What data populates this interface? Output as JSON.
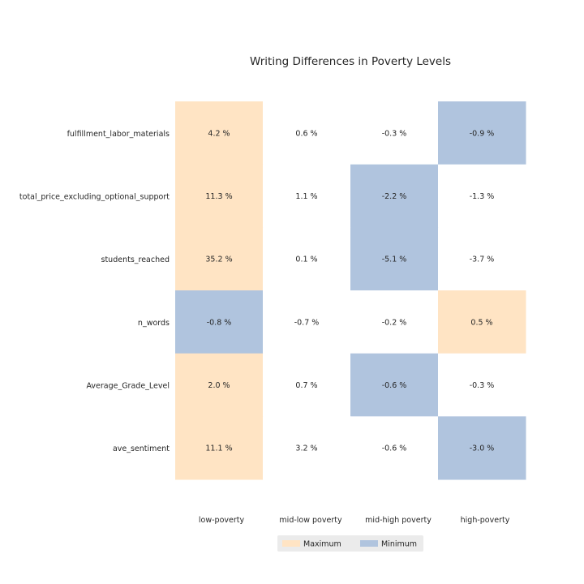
{
  "chart_data": {
    "type": "heatmap",
    "title": "Writing Differences in Poverty Levels",
    "rows": [
      "fulfillment_labor_materials",
      "total_price_excluding_optional_support",
      "students_reached",
      "n_words",
      "Average_Grade_Level",
      "ave_sentiment"
    ],
    "columns": [
      "low-poverty",
      "mid-low poverty",
      "mid-high poverty",
      "high-poverty"
    ],
    "values": [
      [
        "4.2 %",
        "0.6 %",
        "-0.3 %",
        "-0.9 %"
      ],
      [
        "11.3 %",
        "1.1 %",
        "-2.2 %",
        "-1.3 %"
      ],
      [
        "35.2 %",
        "0.1 %",
        "-5.1 %",
        "-3.7 %"
      ],
      [
        "-0.8 %",
        "-0.7 %",
        "-0.2 %",
        "0.5 %"
      ],
      [
        "2.0 %",
        "0.7 %",
        "-0.6 %",
        "-0.3 %"
      ],
      [
        "11.1 %",
        "3.2 %",
        "-0.6 %",
        "-3.0 %"
      ]
    ],
    "highlight": [
      [
        "max",
        "none",
        "none",
        "min"
      ],
      [
        "max",
        "none",
        "min",
        "none"
      ],
      [
        "max",
        "none",
        "min",
        "none"
      ],
      [
        "min",
        "none",
        "none",
        "max"
      ],
      [
        "max",
        "none",
        "min",
        "none"
      ],
      [
        "max",
        "none",
        "none",
        "min"
      ]
    ],
    "legend": {
      "position": "bottom",
      "entries": [
        {
          "label": "Maximum",
          "key": "max"
        },
        {
          "label": "Minimum",
          "key": "min"
        }
      ]
    },
    "colors": {
      "max": "#ffe4c4",
      "min": "#b0c4de",
      "none": "#ffffff",
      "legend_bg": "#ebebeb"
    },
    "grid": false
  }
}
